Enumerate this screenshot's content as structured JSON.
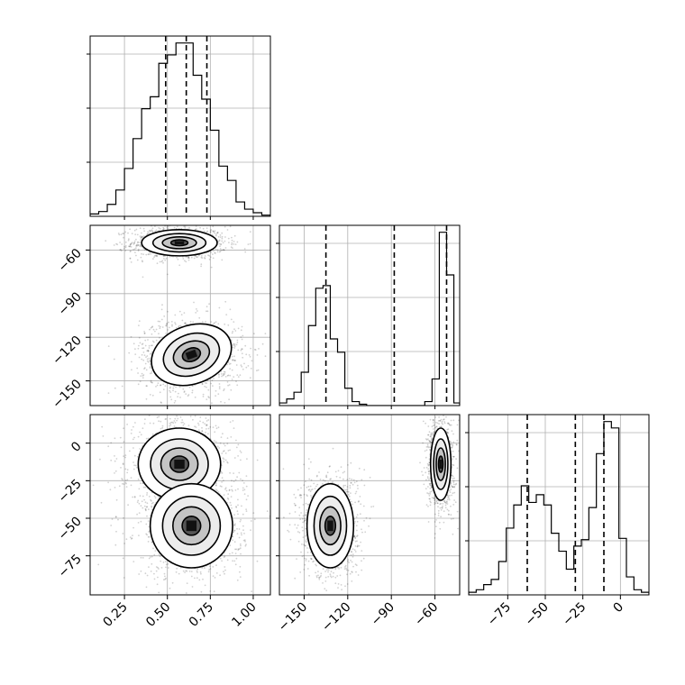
{
  "chart_data": {
    "type": "corner",
    "parameters": [
      {
        "key": "p0",
        "range": [
          0.05,
          1.1
        ],
        "ticks": [
          0.25,
          0.5,
          0.75,
          1.0
        ],
        "tick_labels": [
          "0.25",
          "0.50",
          "0.75",
          "1.00"
        ],
        "quantiles": [
          0.49,
          0.61,
          0.73
        ]
      },
      {
        "key": "p1",
        "range": [
          -167,
          -43
        ],
        "ticks": [
          -150,
          -120,
          -90,
          -60
        ],
        "tick_labels": [
          "−150",
          "−120",
          "−90",
          "−60"
        ],
        "quantiles": [
          -135,
          -88,
          -52
        ]
      },
      {
        "key": "p2",
        "range": [
          -101,
          19
        ],
        "ticks": [
          -75,
          -50,
          -25,
          0
        ],
        "tick_labels": [
          "−75",
          "−50",
          "−25",
          "0"
        ],
        "quantiles": [
          -62,
          -30,
          -11
        ]
      }
    ],
    "histograms": [
      {
        "param": "p0",
        "bin_edges": [
          0.05,
          0.1,
          0.15,
          0.2,
          0.25,
          0.3,
          0.35,
          0.4,
          0.45,
          0.5,
          0.55,
          0.6,
          0.65,
          0.7,
          0.75,
          0.8,
          0.85,
          0.9,
          0.95,
          1.0,
          1.05,
          1.1
        ],
        "counts": [
          2,
          4,
          10,
          22,
          40,
          65,
          90,
          100,
          128,
          135,
          145,
          145,
          118,
          98,
          72,
          42,
          30,
          12,
          6,
          3,
          1
        ]
      },
      {
        "param": "p1",
        "bin_edges": [
          -167,
          -162,
          -157,
          -152,
          -147,
          -142,
          -137,
          -132,
          -127,
          -122,
          -117,
          -112,
          -107,
          -102,
          -97,
          -92,
          -87,
          -82,
          -77,
          -72,
          -67,
          -62,
          -57,
          -52,
          -47,
          -43
        ],
        "counts": [
          2,
          5,
          10,
          25,
          60,
          88,
          90,
          50,
          40,
          13,
          3,
          1,
          0,
          0,
          0,
          0,
          0,
          0,
          0,
          0,
          3,
          20,
          130,
          98,
          2
        ]
      },
      {
        "param": "p2",
        "bin_edges": [
          -101,
          -96,
          -91,
          -86,
          -81,
          -76,
          -71,
          -66,
          -61,
          -56,
          -51,
          -46,
          -41,
          -36,
          -31,
          -26,
          -21,
          -16,
          -11,
          -6,
          -1,
          4,
          9,
          14,
          19
        ],
        "counts": [
          2,
          4,
          8,
          12,
          26,
          52,
          70,
          85,
          72,
          78,
          70,
          48,
          34,
          20,
          38,
          43,
          68,
          110,
          135,
          130,
          44,
          14,
          4,
          2
        ]
      }
    ],
    "pairs": [
      {
        "x": "p0",
        "y": "p1",
        "modes": [
          {
            "x_mean": 0.57,
            "y_mean": -55,
            "x_sd": 0.11,
            "y_sd": 4.5,
            "weight": 0.5
          },
          {
            "x_mean": 0.64,
            "y_mean": -132,
            "x_sd": 0.12,
            "y_sd": 10,
            "weight": 0.5
          }
        ]
      },
      {
        "x": "p0",
        "y": "p2",
        "modes": [
          {
            "x_mean": 0.57,
            "y_mean": -14,
            "x_sd": 0.12,
            "y_sd": 12,
            "weight": 0.5
          },
          {
            "x_mean": 0.64,
            "y_mean": -55,
            "x_sd": 0.12,
            "y_sd": 14,
            "weight": 0.5
          }
        ]
      },
      {
        "x": "p1",
        "y": "p2",
        "modes": [
          {
            "x_mean": -132,
            "y_mean": -55,
            "x_sd": 8,
            "y_sd": 14,
            "weight": 0.5
          },
          {
            "x_mean": -56,
            "y_mean": -14,
            "x_sd": 3.5,
            "y_sd": 12,
            "weight": 0.5
          }
        ]
      }
    ],
    "grid": true,
    "x_tick_rotation_deg": 45,
    "y_tick_rotation_deg": 45
  }
}
